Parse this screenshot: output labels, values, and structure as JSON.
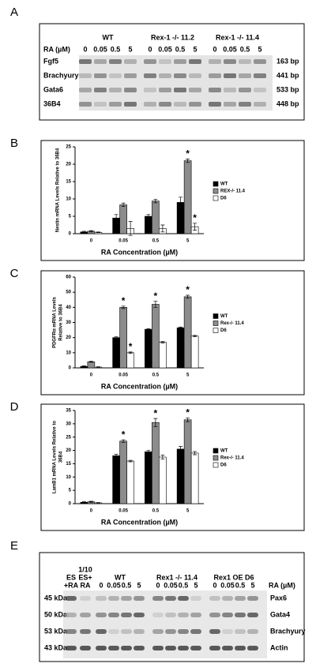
{
  "panel_a": {
    "label": "A",
    "ra_label": "RA (µM)",
    "groups": [
      "WT",
      "Rex-1 -/- 11.2",
      "Rex-1 -/- 11.4"
    ],
    "doses": [
      "0",
      "0.05",
      "0.5",
      "5"
    ],
    "rows": [
      {
        "gene": "Fgf5",
        "size": "163 bp"
      },
      {
        "gene": "Brachyury",
        "size": "441 bp"
      },
      {
        "gene": "Gata6",
        "size": "533 bp"
      },
      {
        "gene": "36B4",
        "size": "448 bp"
      }
    ]
  },
  "chart_data": [
    {
      "type": "bar",
      "label": "B",
      "ylabel": [
        "Nestin mRNA Levels Relative to 36B4"
      ],
      "xlabel": "RA Concentration (µM)",
      "categories": [
        "0",
        "0.05",
        "0.5",
        "5"
      ],
      "ylim": [
        0,
        25
      ],
      "yticks": [
        0,
        5,
        10,
        15,
        20,
        25
      ],
      "series": [
        {
          "name": "WT",
          "color": "#000000",
          "values": [
            0.5,
            4.5,
            5,
            9
          ],
          "errors": [
            0.2,
            1,
            0.5,
            1.5
          ]
        },
        {
          "name": "REX-/- 11.4",
          "color": "#8c8c8c",
          "values": [
            0.7,
            8.3,
            9.4,
            21
          ],
          "errors": [
            0.2,
            0.5,
            0.5,
            0.5
          ]
        },
        {
          "name": "D6",
          "color": "#ffffff",
          "values": [
            0.4,
            1.5,
            1.5,
            2
          ],
          "errors": [
            0.1,
            2,
            1,
            1
          ]
        }
      ],
      "annotations": [
        {
          "text": "*",
          "series": "REX-/- 11.4",
          "category": "5"
        },
        {
          "text": "*",
          "series": "D6",
          "category": "5"
        }
      ]
    },
    {
      "type": "bar",
      "label": "C",
      "ylabel": [
        "PDGFRα mRNA Levels",
        "Relative to 36B4"
      ],
      "xlabel": "RA Concentration (µM)",
      "categories": [
        "0",
        "0.05",
        "0.5",
        "5"
      ],
      "ylim": [
        0,
        60
      ],
      "yticks": [
        0,
        10,
        20,
        30,
        40,
        50,
        60
      ],
      "series": [
        {
          "name": "WT",
          "color": "#000000",
          "values": [
            1,
            20,
            25.5,
            26.5
          ],
          "errors": [
            0.3,
            0.5,
            0.5,
            0.5
          ]
        },
        {
          "name": "Rex-/- 11.4",
          "color": "#8c8c8c",
          "values": [
            4,
            40,
            42,
            47
          ],
          "errors": [
            0.3,
            0.8,
            2,
            1
          ]
        },
        {
          "name": "D6",
          "color": "#ffffff",
          "values": [
            0.5,
            10,
            17,
            21
          ],
          "errors": [
            0.2,
            0.5,
            0.5,
            0.5
          ]
        }
      ],
      "annotations": [
        {
          "text": "*",
          "series": "Rex-/- 11.4",
          "category": "0.05"
        },
        {
          "text": "*",
          "series": "D6",
          "category": "0.05"
        },
        {
          "text": "*",
          "series": "Rex-/- 11.4",
          "category": "0.5"
        },
        {
          "text": "*",
          "series": "Rex-/- 11.4",
          "category": "5"
        }
      ]
    },
    {
      "type": "bar",
      "label": "D",
      "ylabel": [
        "LamB1 mRNA Levels Relative to",
        "36B4"
      ],
      "xlabel": "RA Concentration (µM)",
      "categories": [
        "0",
        "0.05",
        "0.5",
        "5"
      ],
      "ylim": [
        0,
        35
      ],
      "yticks": [
        0,
        5,
        10,
        15,
        20,
        25,
        30,
        35
      ],
      "series": [
        {
          "name": "WT",
          "color": "#000000",
          "values": [
            0.5,
            18,
            19.5,
            20.5
          ],
          "errors": [
            0.2,
            0.5,
            0.5,
            1
          ]
        },
        {
          "name": "Rex-/- 11.4",
          "color": "#8c8c8c",
          "values": [
            0.7,
            23.5,
            30.5,
            31.5
          ],
          "errors": [
            0.2,
            0.5,
            1.5,
            0.7
          ]
        },
        {
          "name": "D6",
          "color": "#ffffff",
          "values": [
            0.3,
            16,
            17.5,
            19
          ],
          "errors": [
            0.1,
            0.3,
            0.8,
            0.6
          ]
        }
      ],
      "annotations": [
        {
          "text": "*",
          "series": "Rex-/- 11.4",
          "category": "0.05"
        },
        {
          "text": "*",
          "series": "Rex-/- 11.4",
          "category": "0.5"
        },
        {
          "text": "*",
          "series": "Rex-/- 11.4",
          "category": "5"
        }
      ]
    }
  ],
  "panel_e": {
    "label": "E",
    "controls": [
      [
        "ES",
        "+RA"
      ],
      [
        "1/10",
        "ES+",
        "RA"
      ]
    ],
    "groups": [
      "WT",
      "Rex1 -/- 11.4",
      "Rex1 OE D6"
    ],
    "doses": [
      "0",
      "0.05",
      "0.5",
      "5"
    ],
    "ra_label": "RA (µM)",
    "rows": [
      {
        "size": "45 kDa",
        "protein": "Pax6"
      },
      {
        "size": "50 kDa",
        "protein": "Gata4"
      },
      {
        "size": "53 kDa",
        "protein": "Brachyury"
      },
      {
        "size": "43 kDa",
        "protein": "Actin"
      }
    ]
  }
}
